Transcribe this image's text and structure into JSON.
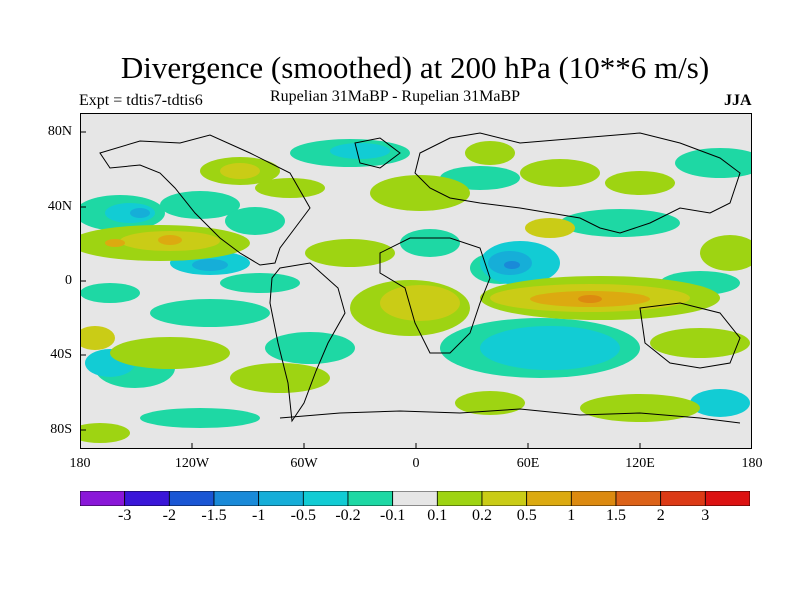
{
  "title": "Divergence (smoothed) at 200 hPa (10**6 m/s)",
  "experiment_label": "Expt = tdtis7-tdtis6",
  "subtitle": "Rupelian  31MaBP - Rupelian  31MaBP",
  "season": "JJA",
  "axes": {
    "lat_labels": [
      "80N",
      "40N",
      "0",
      "40S",
      "80S"
    ],
    "lon_labels": [
      "180",
      "120W",
      "60W",
      "0",
      "60E",
      "120E",
      "180"
    ]
  },
  "colorbar": {
    "colors": [
      "#8a17d8",
      "#3a16d8",
      "#1a56d4",
      "#1a8ad8",
      "#16aed8",
      "#12ccd4",
      "#1ed8a4",
      "#e6e6e6",
      "#9ed412",
      "#cacc16",
      "#dcaa10",
      "#dc8a10",
      "#dc6218",
      "#dc3a16",
      "#dc1212"
    ],
    "labels": [
      "-3",
      "-2",
      "-1.5",
      "-1",
      "-0.5",
      "-0.2",
      "-0.1",
      "0.1",
      "0.2",
      "0.5",
      "1",
      "1.5",
      "2",
      "3"
    ]
  },
  "map_colors": {
    "background": "#e6e6e6",
    "neg_weak": "#1ed8a4",
    "neg_mid": "#12ccd4",
    "neg_strong": "#16aed8",
    "neg_stronger": "#1a8ad8",
    "pos_weak": "#9ed412",
    "pos_mid": "#cacc16",
    "pos_strong": "#dcaa10",
    "pos_stronger": "#dc8a10"
  }
}
